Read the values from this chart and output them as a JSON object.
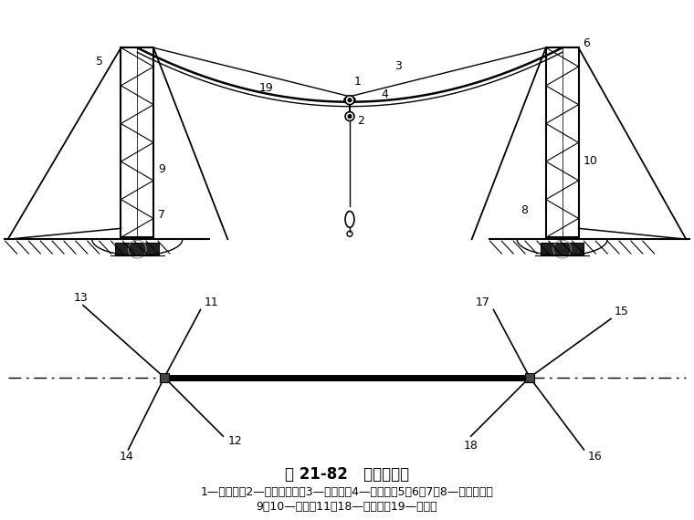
{
  "title": "图 21-82   缆索起重机",
  "caption_line1": "1—缆行车；2—起重滑轮组；3—承重索；4—起重索；5、6、7、8—导向滑轮；",
  "caption_line2": "9、10—支柱；11～18—缆风绳；19—牵引索",
  "bg_color": "#ffffff",
  "line_color": "#000000"
}
